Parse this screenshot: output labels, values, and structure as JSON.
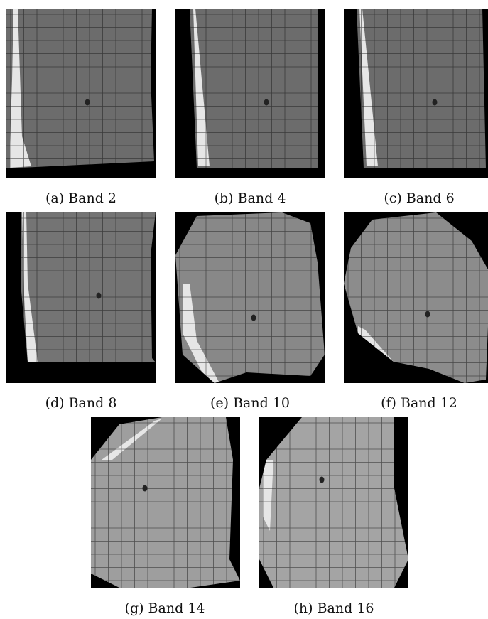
{
  "figure": {
    "captions": [
      "(a) Band 2",
      "(b) Band 4",
      "(c) Band 6",
      "(d) Band 8",
      "(e) Band 10",
      "(f) Band 12",
      "(g) Band 14",
      "(h) Band 16"
    ]
  }
}
